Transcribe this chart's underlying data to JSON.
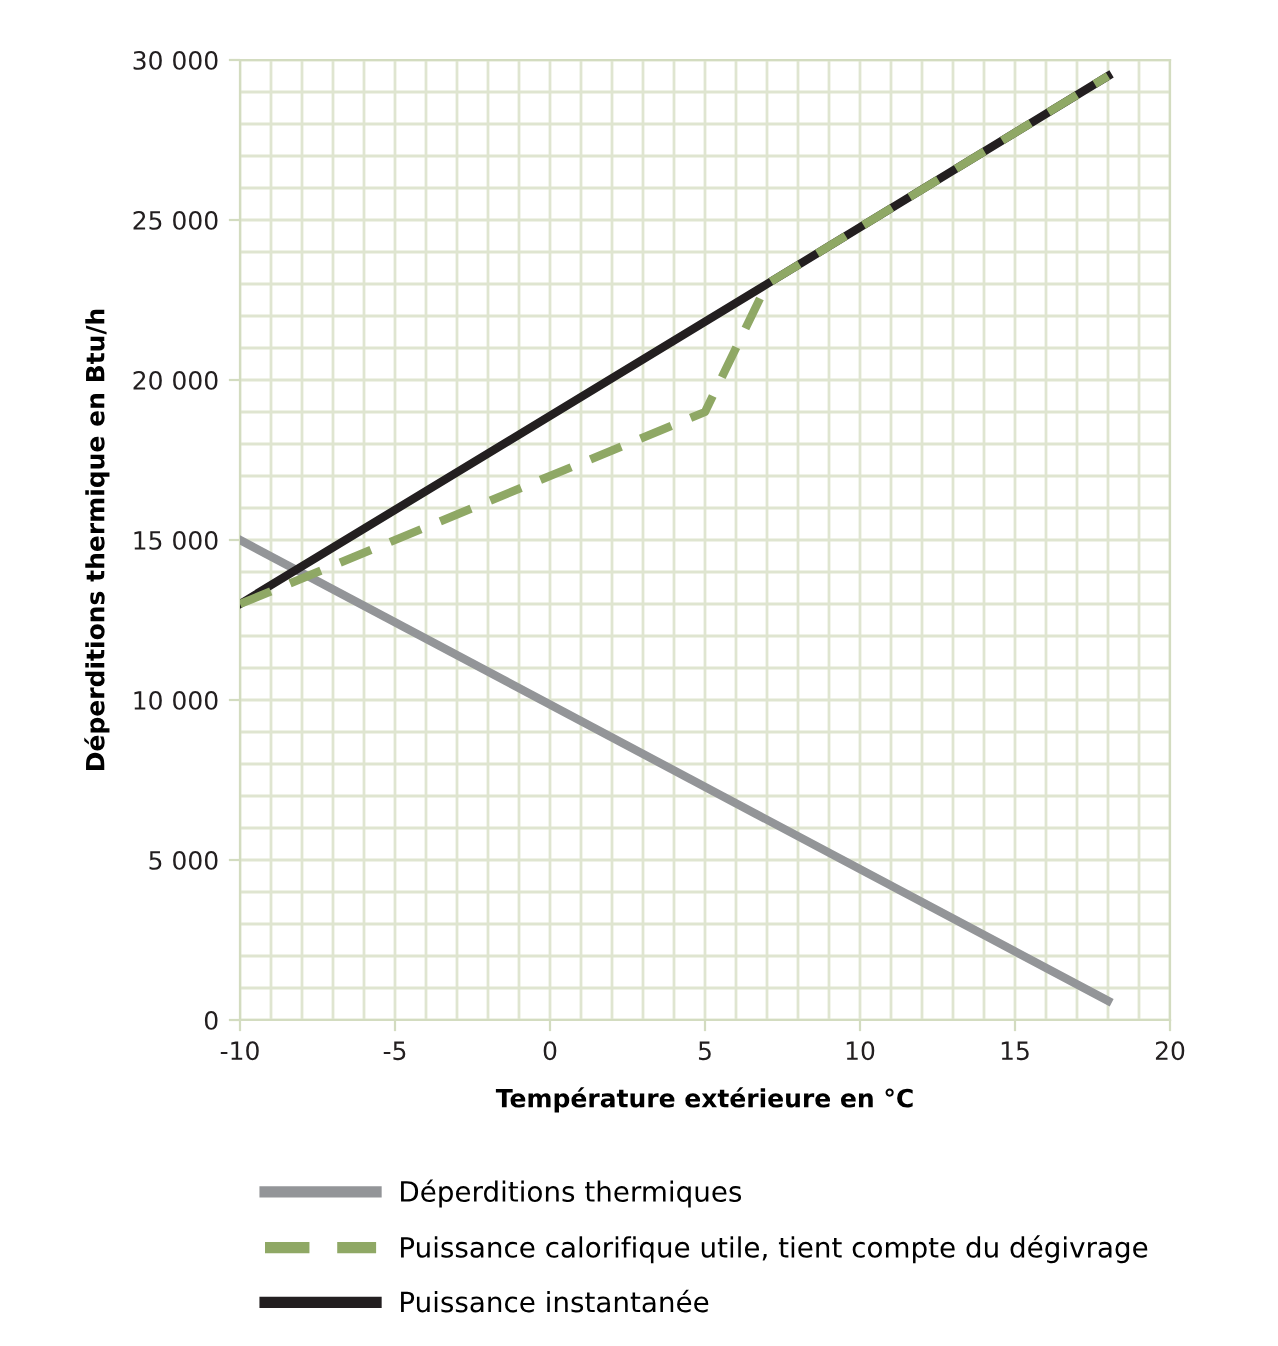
{
  "chart_data": {
    "type": "line",
    "xlabel": "Température extérieure en °C",
    "ylabel": "Déperditions thermique en Btu/h",
    "xlim": [
      -10,
      20
    ],
    "xticks": [
      -10,
      -5,
      0,
      5,
      10,
      15,
      20
    ],
    "ylim": [
      0,
      30000
    ],
    "yticks": [
      {
        "value": 0,
        "label": "0"
      },
      {
        "value": 5000,
        "label": "5 000"
      },
      {
        "value": 10000,
        "label": "10 000"
      },
      {
        "value": 15000,
        "label": "15 000"
      },
      {
        "value": 20000,
        "label": "20 000"
      },
      {
        "value": 25000,
        "label": "25 000"
      },
      {
        "value": 30000,
        "label": "30 000"
      }
    ],
    "grid": true,
    "legend": "bottom",
    "series": [
      {
        "name": "Déperditions thermiques",
        "color": "#939598",
        "line_style": "solid",
        "x": [
          -10,
          18
        ],
        "values": [
          15000,
          600
        ]
      },
      {
        "name": "Puissance calorifique utile, tient compte du dégivrage",
        "color": "#8fa865",
        "line_style": "dashed",
        "x": [
          -10,
          5,
          7,
          18
        ],
        "values": [
          13000,
          19000,
          23000,
          29500
        ]
      },
      {
        "name": "Puissance instantanée",
        "color": "#231f20",
        "line_style": "solid",
        "x": [
          -10,
          7,
          18
        ],
        "values": [
          13000,
          23000,
          29500
        ]
      }
    ]
  }
}
